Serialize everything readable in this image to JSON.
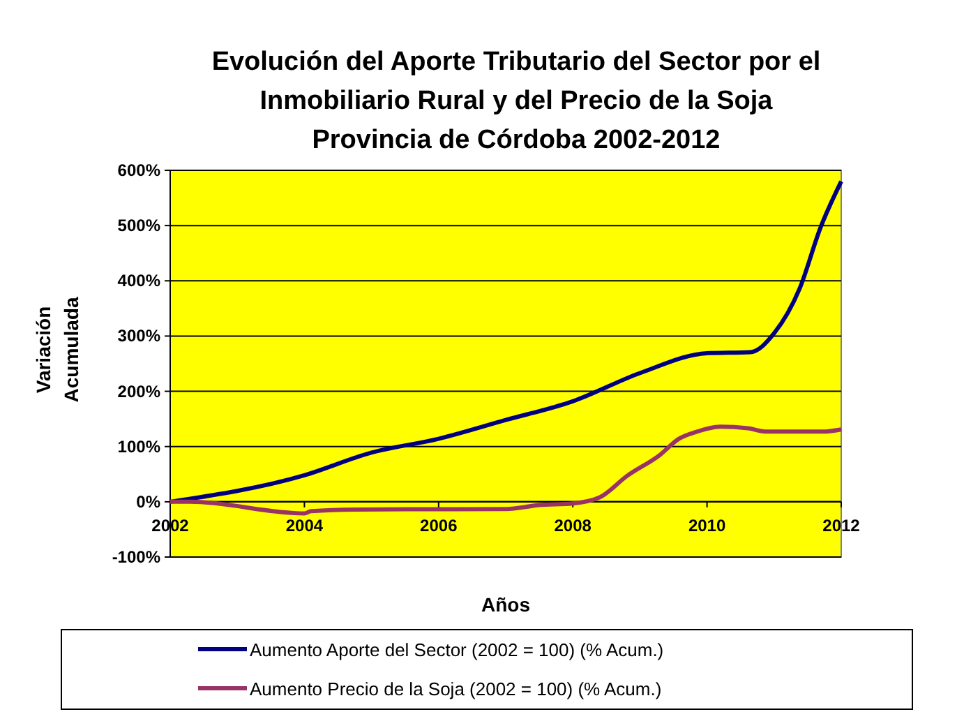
{
  "chart_data": {
    "type": "line",
    "title": "Evolución del Aporte Tributario del Sector por el\nInmobiliario Rural y del Precio de la Soja\nProvincia de Córdoba 2002-2012",
    "xlabel": "Años",
    "ylabel": "Variación\nAcumulada",
    "xlim": [
      2002,
      2012
    ],
    "xticks": [
      2002,
      2004,
      2006,
      2008,
      2010,
      2012
    ],
    "ylim": [
      -100,
      600
    ],
    "yticks": [
      {
        "value": -100,
        "label": "-100%"
      },
      {
        "value": 0,
        "label": "0%"
      },
      {
        "value": 100,
        "label": "100%"
      },
      {
        "value": 200,
        "label": "200%"
      },
      {
        "value": 300,
        "label": "300%"
      },
      {
        "value": 400,
        "label": "400%"
      },
      {
        "value": 500,
        "label": "500%"
      },
      {
        "value": 600,
        "label": "600%"
      }
    ],
    "grid": "y",
    "legend": "bottom",
    "series": [
      {
        "name": "Aumento Aporte del Sector  (2002 = 100)  (% Acum.)",
        "color": "#000080",
        "x": [
          2002,
          2004,
          2005,
          2006,
          2007,
          2008,
          2009,
          2010,
          2010.65,
          2011,
          2011.38,
          2011.69,
          2012
        ],
        "values": [
          0,
          48,
          89,
          114,
          148,
          182,
          233,
          269,
          271,
          305,
          386,
          496,
          580
        ]
      },
      {
        "name": "Aumento Precio de la  Soja     (2002 = 100) (% Acum.)",
        "color": "#993366",
        "x": [
          2002,
          2002.3,
          2004,
          2004.1,
          2004.8,
          2007,
          2007.5,
          2008,
          2008.4,
          2008.81,
          2009.3,
          2009.58,
          2009.85,
          2010.2,
          2010.61,
          2010.89,
          2011.72,
          2012
        ],
        "values": [
          0,
          0,
          -21,
          -17,
          -14,
          -13,
          -6,
          -3,
          8,
          47,
          85,
          114,
          127,
          136,
          133,
          127,
          127,
          131
        ]
      }
    ]
  }
}
